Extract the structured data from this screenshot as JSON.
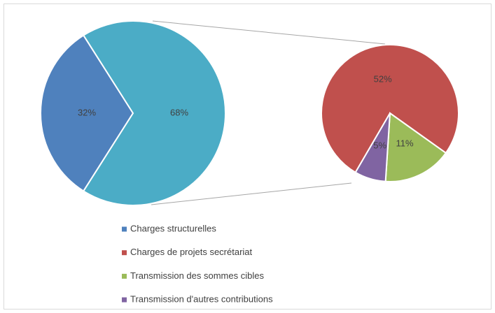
{
  "chart_data": {
    "type": "pie-of-pie",
    "primary": {
      "categories": [
        "Charges structurelles",
        null
      ],
      "values": [
        32,
        68
      ],
      "value_labels": [
        "32%",
        "68%"
      ],
      "colors": [
        "#4f81bd",
        "#4bacc6"
      ]
    },
    "secondary": {
      "categories": [
        "Charges de projets secrétariat",
        "Transmission des sommes cibles",
        "Transmission d'autres contributions"
      ],
      "values": [
        52,
        11,
        5
      ],
      "value_labels": [
        "52%",
        "11%",
        "5%"
      ],
      "colors": [
        "#c0504d",
        "#9bbb59",
        "#8064a2"
      ]
    },
    "legend": "bottom"
  }
}
